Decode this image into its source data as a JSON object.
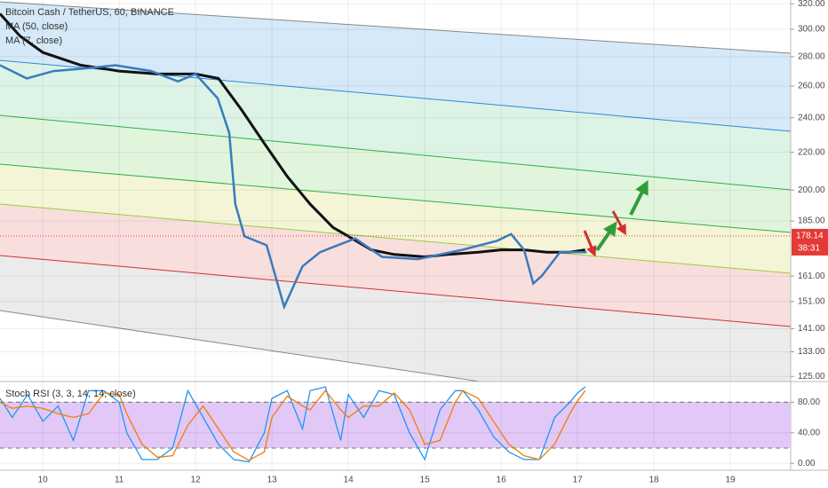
{
  "chart_data": [
    {
      "type": "line",
      "title": "Bitcoin Cash / TetherUS, 60, BINANCE",
      "log_scale": true,
      "grid": true,
      "xlim": [
        9.44,
        19.79
      ],
      "xticks": [
        10,
        11,
        12,
        13,
        14,
        15,
        16,
        17,
        18,
        19
      ],
      "ylim": [
        123.4,
        323
      ],
      "yticks": [
        {
          "value": 125,
          "label": "125.00"
        },
        {
          "value": 133,
          "label": "133.00"
        },
        {
          "value": 141,
          "label": "141.00"
        },
        {
          "value": 151,
          "label": "151.00"
        },
        {
          "value": 161,
          "label": "161.00"
        },
        {
          "value": 185,
          "label": "185.00"
        },
        {
          "value": 200,
          "label": "200.00"
        },
        {
          "value": 220,
          "label": "220.00"
        },
        {
          "value": 240,
          "label": "240.00"
        },
        {
          "value": 260,
          "label": "260.00"
        },
        {
          "value": 280,
          "label": "280.00"
        },
        {
          "value": 300,
          "label": "300.00"
        },
        {
          "value": 320,
          "label": "320.00"
        }
      ],
      "last_price": 178.14,
      "countdown": "38:31",
      "series": [
        {
          "name": "MA (50, close)",
          "color": "#111111",
          "x": [
            9.44,
            9.7,
            10.0,
            10.5,
            11.0,
            11.5,
            12.0,
            12.3,
            12.6,
            12.9,
            13.2,
            13.5,
            13.8,
            14.0,
            14.3,
            14.6,
            15.0,
            15.3,
            15.7,
            16.0,
            16.3,
            16.6,
            16.9,
            17.1
          ],
          "values": [
            312,
            295,
            283,
            274,
            270,
            268,
            268,
            265,
            245,
            225,
            207,
            193,
            182,
            178,
            172,
            170,
            169,
            170,
            171,
            172,
            172,
            171,
            171,
            172
          ]
        },
        {
          "name": "MA (7, close)",
          "color": "#3a7bbf",
          "x": [
            9.44,
            9.79,
            10.14,
            10.6,
            10.95,
            11.42,
            11.77,
            12.0,
            12.29,
            12.44,
            12.52,
            12.64,
            12.93,
            13.16,
            13.4,
            13.63,
            13.86,
            14.09,
            14.44,
            14.91,
            15.49,
            15.95,
            16.13,
            16.3,
            16.42,
            16.53,
            16.77,
            17.12
          ],
          "values": [
            274,
            265,
            270,
            272,
            274,
            270,
            263,
            268,
            252,
            231,
            193,
            178,
            174,
            149,
            165,
            171,
            174,
            177,
            169,
            168,
            172,
            176,
            179,
            172,
            158,
            161,
            171,
            171
          ]
        }
      ]
    },
    {
      "type": "line",
      "title": "Stoch RSI (3, 3, 14, 14, close)",
      "grid": true,
      "xlim": [
        9.44,
        19.79
      ],
      "ylim": [
        -9,
        107
      ],
      "band": [
        20,
        80
      ],
      "yticks": [
        {
          "value": 80,
          "label": "80.00"
        },
        {
          "value": 40,
          "label": "40.00"
        },
        {
          "value": 0,
          "label": "0.00"
        }
      ],
      "series": [
        {
          "color": "#2196f3",
          "x": [
            9.44,
            9.6,
            9.8,
            10.0,
            10.2,
            10.4,
            10.6,
            10.8,
            11.0,
            11.1,
            11.3,
            11.5,
            11.7,
            11.9,
            12.1,
            12.3,
            12.5,
            12.7,
            12.9,
            13.0,
            13.2,
            13.4,
            13.5,
            13.7,
            13.9,
            14.0,
            14.2,
            14.4,
            14.6,
            14.8,
            15.0,
            15.2,
            15.4,
            15.5,
            15.7,
            15.9,
            16.1,
            16.3,
            16.5,
            16.7,
            16.9,
            17.0,
            17.1
          ],
          "values": [
            85,
            60,
            90,
            55,
            75,
            30,
            95,
            95,
            80,
            40,
            5,
            5,
            20,
            95,
            60,
            25,
            5,
            2,
            40,
            85,
            95,
            45,
            95,
            100,
            30,
            90,
            60,
            95,
            90,
            40,
            5,
            70,
            95,
            95,
            70,
            35,
            15,
            5,
            5,
            60,
            80,
            92,
            100
          ]
        },
        {
          "color": "#f57c00",
          "x": [
            9.44,
            9.6,
            9.8,
            10.0,
            10.2,
            10.4,
            10.6,
            10.8,
            11.0,
            11.1,
            11.3,
            11.5,
            11.7,
            11.9,
            12.1,
            12.3,
            12.5,
            12.7,
            12.9,
            13.0,
            13.2,
            13.4,
            13.5,
            13.7,
            13.9,
            14.0,
            14.2,
            14.4,
            14.6,
            14.8,
            15.0,
            15.2,
            15.4,
            15.5,
            15.7,
            15.9,
            16.1,
            16.3,
            16.5,
            16.7,
            16.9,
            17.0,
            17.1
          ],
          "values": [
            80,
            72,
            75,
            72,
            65,
            60,
            65,
            92,
            90,
            65,
            25,
            8,
            10,
            50,
            75,
            45,
            15,
            4,
            15,
            60,
            88,
            75,
            70,
            95,
            70,
            60,
            75,
            75,
            92,
            70,
            25,
            30,
            80,
            95,
            85,
            55,
            25,
            10,
            5,
            25,
            65,
            82,
            95
          ]
        }
      ]
    }
  ]
}
